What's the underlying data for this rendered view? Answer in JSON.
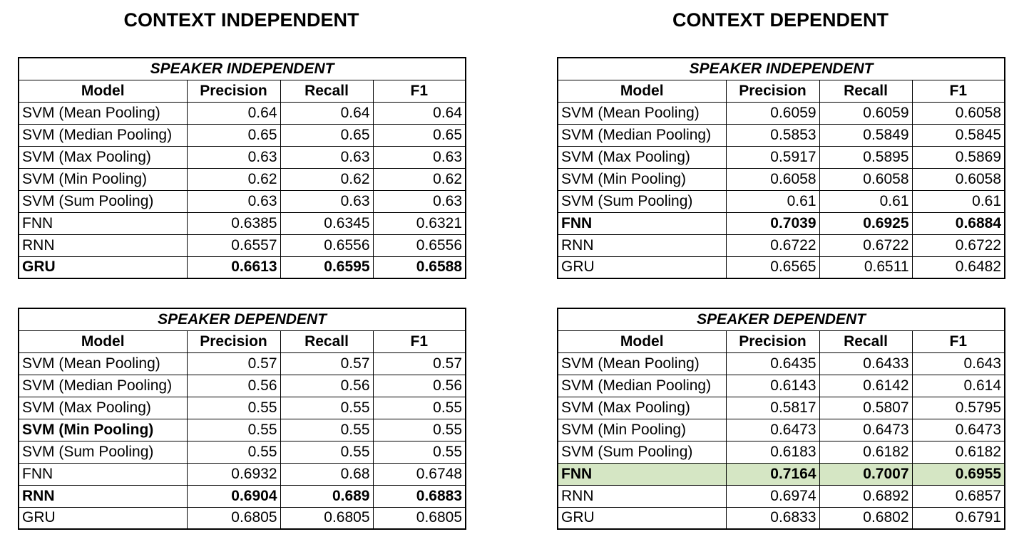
{
  "headings": {
    "left": "CONTEXT INDEPENDENT",
    "right": "CONTEXT DEPENDENT"
  },
  "columns": [
    "Model",
    "Precision",
    "Recall",
    "F1"
  ],
  "tables": {
    "ci_speaker_independent": {
      "title": "SPEAKER INDEPENDENT",
      "rows": [
        {
          "model": "SVM (Mean Pooling)",
          "precision": "0.64",
          "recall": "0.64",
          "f1": "0.64",
          "bold": false
        },
        {
          "model": "SVM (Median Pooling)",
          "precision": "0.65",
          "recall": "0.65",
          "f1": "0.65",
          "bold": false
        },
        {
          "model": "SVM (Max Pooling)",
          "precision": "0.63",
          "recall": "0.63",
          "f1": "0.63",
          "bold": false
        },
        {
          "model": "SVM (Min Pooling)",
          "precision": "0.62",
          "recall": "0.62",
          "f1": "0.62",
          "bold": false
        },
        {
          "model": "SVM (Sum Pooling)",
          "precision": "0.63",
          "recall": "0.63",
          "f1": "0.63",
          "bold": false
        },
        {
          "model": "FNN",
          "precision": "0.6385",
          "recall": "0.6345",
          "f1": "0.6321",
          "bold": false
        },
        {
          "model": "RNN",
          "precision": "0.6557",
          "recall": "0.6556",
          "f1": "0.6556",
          "bold": false
        },
        {
          "model": "GRU",
          "precision": "0.6613",
          "recall": "0.6595",
          "f1": "0.6588",
          "bold": true
        }
      ]
    },
    "ci_speaker_dependent": {
      "title": "SPEAKER DEPENDENT",
      "rows": [
        {
          "model": "SVM (Mean Pooling)",
          "precision": "0.57",
          "recall": "0.57",
          "f1": "0.57",
          "bold": false
        },
        {
          "model": "SVM (Median Pooling)",
          "precision": "0.56",
          "recall": "0.56",
          "f1": "0.56",
          "bold": false
        },
        {
          "model": "SVM (Max Pooling)",
          "precision": "0.55",
          "recall": "0.55",
          "f1": "0.55",
          "bold": false
        },
        {
          "model": "SVM (Min Pooling)",
          "precision": "0.55",
          "recall": "0.55",
          "f1": "0.55",
          "bold": "model"
        },
        {
          "model": "SVM (Sum Pooling)",
          "precision": "0.55",
          "recall": "0.55",
          "f1": "0.55",
          "bold": false
        },
        {
          "model": "FNN",
          "precision": "0.6932",
          "recall": "0.68",
          "f1": "0.6748",
          "bold": false
        },
        {
          "model": "RNN",
          "precision": "0.6904",
          "recall": "0.689",
          "f1": "0.6883",
          "bold": true
        },
        {
          "model": "GRU",
          "precision": "0.6805",
          "recall": "0.6805",
          "f1": "0.6805",
          "bold": false
        }
      ]
    },
    "cd_speaker_independent": {
      "title": "SPEAKER INDEPENDENT",
      "rows": [
        {
          "model": "SVM (Mean Pooling)",
          "precision": "0.6059",
          "recall": "0.6059",
          "f1": "0.6058",
          "bold": false
        },
        {
          "model": "SVM (Median Pooling)",
          "precision": "0.5853",
          "recall": "0.5849",
          "f1": "0.5845",
          "bold": false
        },
        {
          "model": "SVM (Max Pooling)",
          "precision": "0.5917",
          "recall": "0.5895",
          "f1": "0.5869",
          "bold": false
        },
        {
          "model": "SVM (Min Pooling)",
          "precision": "0.6058",
          "recall": "0.6058",
          "f1": "0.6058",
          "bold": false
        },
        {
          "model": "SVM (Sum Pooling)",
          "precision": "0.61",
          "recall": "0.61",
          "f1": "0.61",
          "bold": false
        },
        {
          "model": "FNN",
          "precision": "0.7039",
          "recall": "0.6925",
          "f1": "0.6884",
          "bold": true
        },
        {
          "model": "RNN",
          "precision": "0.6722",
          "recall": "0.6722",
          "f1": "0.6722",
          "bold": false
        },
        {
          "model": "GRU",
          "precision": "0.6565",
          "recall": "0.6511",
          "f1": "0.6482",
          "bold": false
        }
      ]
    },
    "cd_speaker_dependent": {
      "title": "SPEAKER DEPENDENT",
      "highlight_color": "#d5e6c4",
      "rows": [
        {
          "model": "SVM (Mean Pooling)",
          "precision": "0.6435",
          "recall": "0.6433",
          "f1": "0.643",
          "bold": false
        },
        {
          "model": "SVM (Median Pooling)",
          "precision": "0.6143",
          "recall": "0.6142",
          "f1": "0.614",
          "bold": false
        },
        {
          "model": "SVM (Max Pooling)",
          "precision": "0.5817",
          "recall": "0.5807",
          "f1": "0.5795",
          "bold": false
        },
        {
          "model": "SVM (Min Pooling)",
          "precision": "0.6473",
          "recall": "0.6473",
          "f1": "0.6473",
          "bold": false
        },
        {
          "model": "SVM (Sum Pooling)",
          "precision": "0.6183",
          "recall": "0.6182",
          "f1": "0.6182",
          "bold": false
        },
        {
          "model": "FNN",
          "precision": "0.7164",
          "recall": "0.7007",
          "f1": "0.6955",
          "bold": true,
          "highlight": true
        },
        {
          "model": "RNN",
          "precision": "0.6974",
          "recall": "0.6892",
          "f1": "0.6857",
          "bold": false
        },
        {
          "model": "GRU",
          "precision": "0.6833",
          "recall": "0.6802",
          "f1": "0.6791",
          "bold": false
        }
      ]
    }
  }
}
